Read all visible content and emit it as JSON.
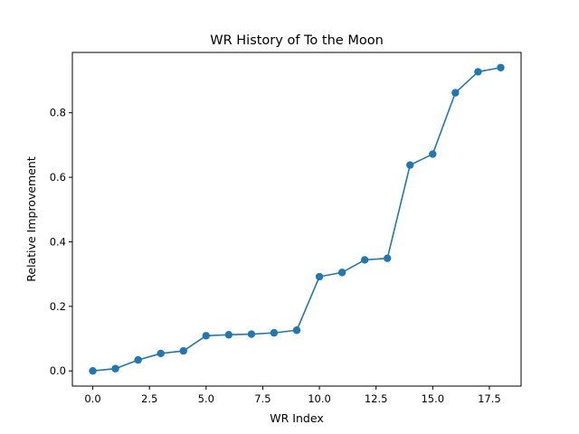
{
  "chart_data": {
    "type": "line",
    "title": "WR History of To the Moon",
    "xlabel": "WR Index",
    "ylabel": "Relative Improvement",
    "xlim": [
      -0.9,
      18.9
    ],
    "ylim": [
      -0.047,
      0.987
    ],
    "xticks": [
      0.0,
      2.5,
      5.0,
      7.5,
      10.0,
      12.5,
      15.0,
      17.5
    ],
    "xtick_labels": [
      "0.0",
      "2.5",
      "5.0",
      "7.5",
      "10.0",
      "12.5",
      "15.0",
      "17.5"
    ],
    "yticks": [
      0.0,
      0.2,
      0.4,
      0.6,
      0.8
    ],
    "ytick_labels": [
      "0.0",
      "0.2",
      "0.4",
      "0.6",
      "0.8"
    ],
    "grid": false,
    "series": [
      {
        "color": "#1f77b4",
        "marker": "circle",
        "x": [
          0,
          1,
          2,
          3,
          4,
          5,
          6,
          7,
          8,
          9,
          10,
          11,
          12,
          13,
          14,
          15,
          16,
          17,
          18
        ],
        "y": [
          0.0,
          0.007,
          0.034,
          0.054,
          0.062,
          0.109,
          0.112,
          0.114,
          0.118,
          0.126,
          0.292,
          0.305,
          0.344,
          0.349,
          0.638,
          0.672,
          0.862,
          0.927,
          0.94
        ]
      }
    ]
  }
}
